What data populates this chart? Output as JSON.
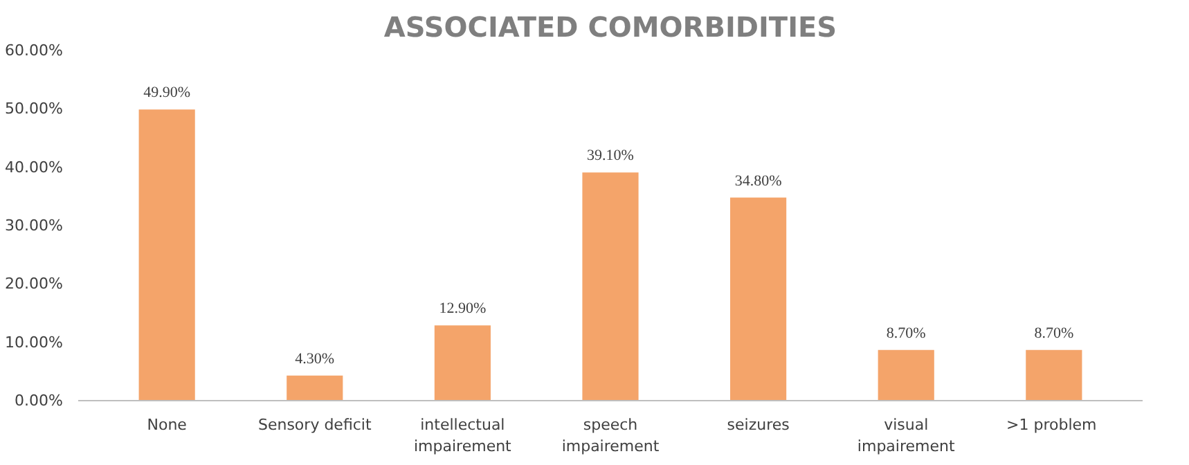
{
  "chart_data": {
    "type": "bar",
    "title": "ASSOCIATED COMORBIDITIES",
    "categories": [
      "None",
      "Sensory deficit",
      "intellectual impairement",
      "speech impairement",
      "seizures",
      "visual impairement",
      ">1  problem"
    ],
    "values": [
      49.9,
      4.3,
      12.9,
      39.1,
      34.8,
      8.7,
      8.7
    ],
    "value_labels": [
      "49.90%",
      "4.30%",
      "12.90%",
      "39.10%",
      "34.80%",
      "8.70%",
      "8.70%"
    ],
    "color": "#f4a46a",
    "ylim": [
      0,
      60
    ],
    "yticks": [
      {
        "value": 0,
        "label": "0.00%"
      },
      {
        "value": 10,
        "label": "10.00%"
      },
      {
        "value": 20,
        "label": "20.00%"
      },
      {
        "value": 30,
        "label": "30.00%"
      },
      {
        "value": 40,
        "label": "40.00%"
      },
      {
        "value": 50,
        "label": "50.00%"
      },
      {
        "value": 60,
        "label": "60.00%"
      }
    ],
    "grid": false
  }
}
